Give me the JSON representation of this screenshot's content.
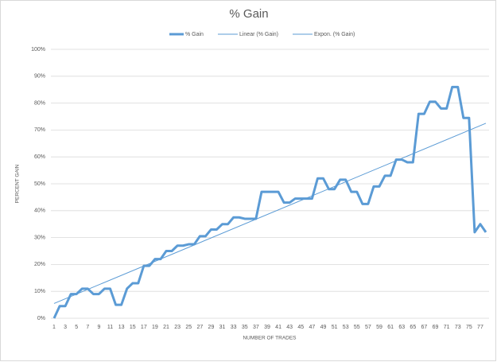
{
  "chart_data": {
    "type": "line",
    "title": "% Gain",
    "xlabel": "NUMBER OF TRADES",
    "ylabel": "PERCENT GAIN",
    "categories": [
      1,
      null,
      3,
      null,
      5,
      null,
      7,
      null,
      9,
      null,
      11,
      null,
      13,
      null,
      15,
      null,
      17,
      null,
      19,
      null,
      21,
      null,
      23,
      null,
      25,
      null,
      27,
      null,
      29,
      null,
      31,
      null,
      33,
      null,
      35,
      null,
      37,
      null,
      39,
      null,
      41,
      null,
      43,
      null,
      45,
      null,
      47,
      null,
      49,
      null,
      51,
      null,
      53,
      null,
      55,
      null,
      57,
      null,
      59,
      null,
      61,
      null,
      63,
      null,
      65,
      null,
      67,
      null,
      69,
      null,
      71,
      null,
      73,
      null,
      75,
      null,
      77,
      null
    ],
    "series": [
      {
        "name": "% Gain",
        "color": "#5b9bd5",
        "values": [
          0,
          4.5,
          4.5,
          9,
          9,
          11,
          11,
          9,
          9,
          11,
          11,
          5,
          5,
          11,
          13,
          13,
          19.5,
          19.5,
          22,
          22,
          25,
          25,
          27,
          27,
          27.5,
          27.5,
          30.5,
          30.5,
          33,
          33,
          35,
          35,
          37.5,
          37.5,
          37,
          37,
          37,
          47,
          47,
          47,
          47,
          43,
          43,
          44.5,
          44.5,
          44.5,
          44.5,
          52,
          52,
          48,
          48,
          51.5,
          51.5,
          47,
          47,
          42.5,
          42.5,
          49,
          49,
          53,
          53,
          59,
          59,
          58,
          58,
          76,
          76,
          80.5,
          80.5,
          78,
          78,
          86,
          86,
          74.5,
          74.5,
          32,
          35,
          32
        ]
      }
    ],
    "trendlines": [
      {
        "name": "Linear (% Gain)",
        "color": "#5b9bd5",
        "start": 5.5,
        "end": 72.5
      },
      {
        "name": "Expon. (% Gain)",
        "color": "#5b9bd5"
      }
    ],
    "ylim": [
      0,
      100
    ],
    "yticks": [
      {
        "value": 0,
        "label": "0%"
      },
      {
        "value": 10,
        "label": "10%"
      },
      {
        "value": 20,
        "label": "20%"
      },
      {
        "value": 30,
        "label": "30%"
      },
      {
        "value": 40,
        "label": "40%"
      },
      {
        "value": 50,
        "label": "50%"
      },
      {
        "value": 60,
        "label": "60%"
      },
      {
        "value": 70,
        "label": "70%"
      },
      {
        "value": 80,
        "label": "80%"
      },
      {
        "value": 90,
        "label": "90%"
      },
      {
        "value": 100,
        "label": "100%"
      }
    ],
    "grid": true,
    "legend": "top"
  }
}
